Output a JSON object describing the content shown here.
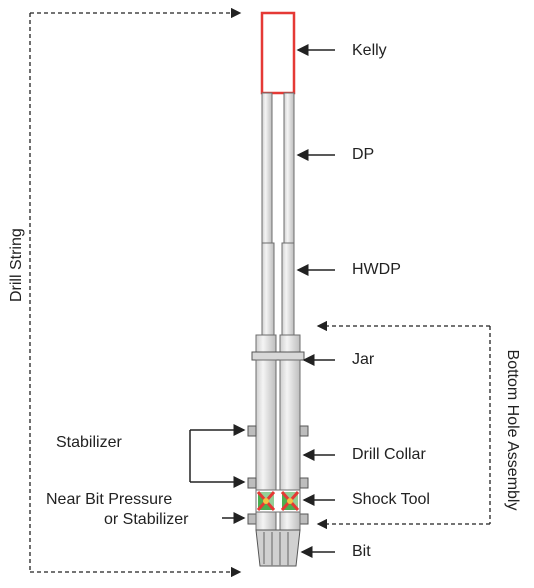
{
  "diagram": {
    "labels": {
      "kelly": "Kelly",
      "dp": "DP",
      "hwdp": "HWDP",
      "jar": "Jar",
      "drill_collar": "Drill Collar",
      "shock_tool": "Shock Tool",
      "bit": "Bit",
      "stabilizer": "Stabilizer",
      "near_bit_line1": "Near Bit Pressure",
      "near_bit_line2": "or Stabilizer",
      "drill_string": "Drill String",
      "bottom_hole_assembly": "Bottom Hole Assembly"
    },
    "colors": {
      "kelly_outline": "#e53935",
      "pipe_outline": "#6d6d6d",
      "pipe_fill": "#eeeeee",
      "shock_tool_body": "#e53935",
      "shock_tool_center": "#f4c542",
      "shock_tool_sides": "#4caf50",
      "stabilizer_blade": "#bdbdbd"
    }
  }
}
